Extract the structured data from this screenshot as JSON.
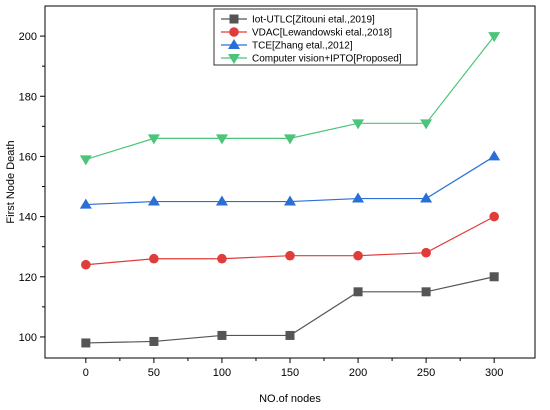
{
  "chart_data": {
    "type": "line",
    "title": "",
    "xlabel": "NO.of nodes",
    "ylabel": "First Node Death",
    "x": [
      0,
      50,
      100,
      150,
      200,
      250,
      300
    ],
    "x_ticks": [
      "0",
      "50",
      "100",
      "150",
      "200",
      "250",
      "300"
    ],
    "y_ticks": [
      "100",
      "120",
      "140",
      "160",
      "180",
      "200"
    ],
    "xlim": [
      -30,
      330
    ],
    "ylim": [
      93,
      210
    ],
    "grid": false,
    "legend_position": "top-center",
    "series": [
      {
        "name": "Iot-UTLC[Zitouni etal.,2019]",
        "color": "#555555",
        "marker": "square",
        "values": [
          98,
          98.5,
          100.5,
          100.5,
          115,
          115,
          120
        ]
      },
      {
        "name": "VDAC[Lewandowski etal.,2018]",
        "color": "#e03c3c",
        "marker": "circle",
        "values": [
          124,
          126,
          126,
          127,
          127,
          128,
          140
        ]
      },
      {
        "name": "TCE[Zhang etal.,2012]",
        "color": "#2a6fd6",
        "marker": "triangle-up",
        "values": [
          144,
          145,
          145,
          145,
          146,
          146,
          160
        ]
      },
      {
        "name": "Computer vision+IPTO[Proposed]",
        "color": "#4cc47a",
        "marker": "triangle-down",
        "values": [
          159,
          166,
          166,
          166,
          171,
          171,
          200
        ]
      }
    ]
  }
}
